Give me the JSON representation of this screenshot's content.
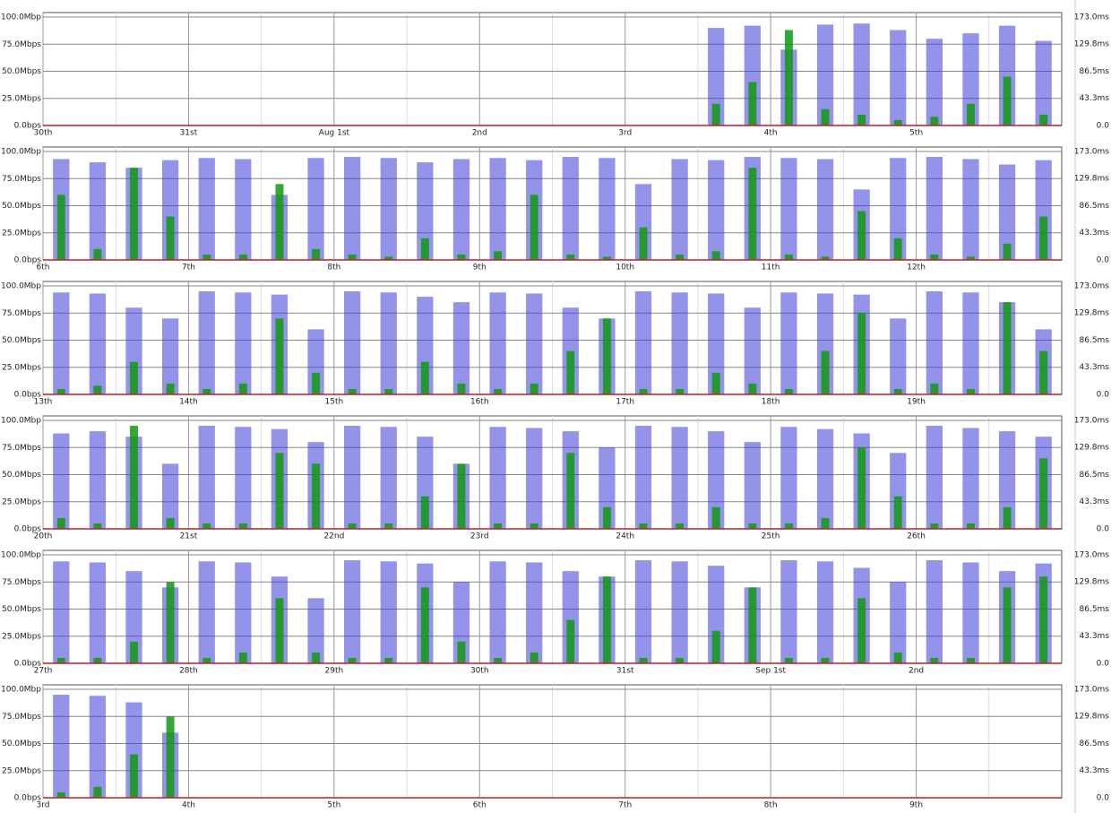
{
  "chart_data": [
    {
      "type": "bar",
      "categories": [
        "30th",
        null,
        null,
        null,
        "31st",
        null,
        null,
        null,
        "Aug 1st",
        null,
        null,
        null,
        "2nd",
        null,
        null,
        null,
        "3rd",
        null,
        null,
        null,
        "4th",
        null,
        null,
        null,
        "5th",
        null,
        null,
        null
      ],
      "series": [
        {
          "color": "#3a3ad8",
          "values": [
            null,
            null,
            null,
            null,
            null,
            null,
            null,
            null,
            null,
            null,
            null,
            null,
            null,
            null,
            null,
            null,
            null,
            null,
            90,
            92,
            70,
            93,
            94,
            88,
            80,
            85,
            92,
            78
          ]
        },
        {
          "color": "#119911",
          "values": [
            null,
            null,
            null,
            null,
            null,
            null,
            null,
            null,
            null,
            null,
            null,
            null,
            null,
            null,
            null,
            null,
            null,
            null,
            20,
            40,
            88,
            15,
            10,
            5,
            8,
            20,
            45,
            10
          ]
        }
      ],
      "ylim": [
        0,
        100
      ],
      "yticks": [
        {
          "value": 0,
          "label": "0.0bps"
        },
        {
          "value": 25,
          "label": "25.0Mbps"
        },
        {
          "value": 50,
          "label": "50.0Mbps"
        },
        {
          "value": 75,
          "label": "75.0Mbps"
        },
        {
          "value": 100,
          "label": "100.0Mbp"
        }
      ],
      "y2lim": [
        0,
        173
      ],
      "y2ticks": [
        {
          "value": 0,
          "label": "0.0"
        },
        {
          "value": 43.3,
          "label": "43.3ms"
        },
        {
          "value": 86.5,
          "label": "86.5ms"
        },
        {
          "value": 129.8,
          "label": "129.8ms"
        },
        {
          "value": 173,
          "label": "173.0ms"
        }
      ],
      "grid": true
    },
    {
      "type": "bar",
      "categories": [
        "6th",
        null,
        null,
        null,
        "7th",
        null,
        null,
        null,
        "8th",
        null,
        null,
        null,
        "9th",
        null,
        null,
        null,
        "10th",
        null,
        null,
        null,
        "11th",
        null,
        null,
        null,
        "12th",
        null,
        null,
        null
      ],
      "series": [
        {
          "color": "#3a3ad8",
          "values": [
            93,
            90,
            85,
            92,
            94,
            93,
            60,
            94,
            95,
            94,
            90,
            93,
            94,
            92,
            95,
            94,
            70,
            93,
            92,
            95,
            94,
            93,
            65,
            94,
            95,
            93,
            88,
            92
          ]
        },
        {
          "color": "#119911",
          "values": [
            60,
            10,
            85,
            40,
            5,
            5,
            70,
            10,
            5,
            3,
            20,
            5,
            8,
            60,
            5,
            3,
            30,
            5,
            8,
            85,
            5,
            3,
            45,
            20,
            5,
            3,
            15,
            40
          ]
        }
      ],
      "ylim": [
        0,
        100
      ],
      "yticks": [
        {
          "value": 0,
          "label": "0.0bps"
        },
        {
          "value": 25,
          "label": "25.0Mbps"
        },
        {
          "value": 50,
          "label": "50.0Mbps"
        },
        {
          "value": 75,
          "label": "75.0Mbps"
        },
        {
          "value": 100,
          "label": "100.0Mbp"
        }
      ],
      "y2lim": [
        0,
        173
      ],
      "y2ticks": [
        {
          "value": 0,
          "label": "0.0"
        },
        {
          "value": 43.3,
          "label": "43.3ms"
        },
        {
          "value": 86.5,
          "label": "86.5ms"
        },
        {
          "value": 129.8,
          "label": "129.8ms"
        },
        {
          "value": 173,
          "label": "173.0ms"
        }
      ],
      "grid": true
    },
    {
      "type": "bar",
      "categories": [
        "13th",
        null,
        null,
        null,
        "14th",
        null,
        null,
        null,
        "15th",
        null,
        null,
        null,
        "16th",
        null,
        null,
        null,
        "17th",
        null,
        null,
        null,
        "18th",
        null,
        null,
        null,
        "19th",
        null,
        null,
        null
      ],
      "series": [
        {
          "color": "#3a3ad8",
          "values": [
            94,
            93,
            80,
            70,
            95,
            94,
            92,
            60,
            95,
            94,
            90,
            85,
            94,
            93,
            80,
            70,
            95,
            94,
            93,
            80,
            94,
            93,
            92,
            70,
            95,
            94,
            85,
            60
          ]
        },
        {
          "color": "#119911",
          "values": [
            5,
            8,
            30,
            10,
            5,
            10,
            70,
            20,
            5,
            5,
            30,
            10,
            5,
            10,
            40,
            70,
            5,
            5,
            20,
            10,
            5,
            40,
            75,
            5,
            10,
            5,
            85,
            40
          ]
        }
      ],
      "ylim": [
        0,
        100
      ],
      "yticks": [
        {
          "value": 0,
          "label": "0.0bps"
        },
        {
          "value": 25,
          "label": "25.0Mbps"
        },
        {
          "value": 50,
          "label": "50.0Mbps"
        },
        {
          "value": 75,
          "label": "75.0Mbps"
        },
        {
          "value": 100,
          "label": "100.0Mbp"
        }
      ],
      "y2lim": [
        0,
        173
      ],
      "y2ticks": [
        {
          "value": 0,
          "label": "0.0"
        },
        {
          "value": 43.3,
          "label": "43.3ms"
        },
        {
          "value": 86.5,
          "label": "86.5ms"
        },
        {
          "value": 129.8,
          "label": "129.8ms"
        },
        {
          "value": 173,
          "label": "173.0ms"
        }
      ],
      "grid": true
    },
    {
      "type": "bar",
      "categories": [
        "20th",
        null,
        null,
        null,
        "21st",
        null,
        null,
        null,
        "22nd",
        null,
        null,
        null,
        "23rd",
        null,
        null,
        null,
        "24th",
        null,
        null,
        null,
        "25th",
        null,
        null,
        null,
        "26th",
        null,
        null,
        null
      ],
      "series": [
        {
          "color": "#3a3ad8",
          "values": [
            88,
            90,
            85,
            60,
            95,
            94,
            92,
            80,
            95,
            94,
            85,
            60,
            94,
            93,
            90,
            75,
            95,
            94,
            90,
            80,
            94,
            92,
            88,
            70,
            95,
            93,
            90,
            85
          ]
        },
        {
          "color": "#119911",
          "values": [
            10,
            5,
            95,
            10,
            5,
            5,
            70,
            60,
            5,
            5,
            30,
            60,
            5,
            5,
            70,
            20,
            5,
            5,
            20,
            5,
            5,
            10,
            75,
            30,
            5,
            5,
            20,
            65
          ]
        }
      ],
      "ylim": [
        0,
        100
      ],
      "yticks": [
        {
          "value": 0,
          "label": "0.0bps"
        },
        {
          "value": 25,
          "label": "25.0Mbps"
        },
        {
          "value": 50,
          "label": "50.0Mbps"
        },
        {
          "value": 75,
          "label": "75.0Mbps"
        },
        {
          "value": 100,
          "label": "100.0Mbp"
        }
      ],
      "y2lim": [
        0,
        173
      ],
      "y2ticks": [
        {
          "value": 0,
          "label": "0.0"
        },
        {
          "value": 43.3,
          "label": "43.3ms"
        },
        {
          "value": 86.5,
          "label": "86.5ms"
        },
        {
          "value": 129.8,
          "label": "129.8ms"
        },
        {
          "value": 173,
          "label": "173.0ms"
        }
      ],
      "grid": true
    },
    {
      "type": "bar",
      "categories": [
        "27th",
        null,
        null,
        null,
        "28th",
        null,
        null,
        null,
        "29th",
        null,
        null,
        null,
        "30th",
        null,
        null,
        null,
        "31st",
        null,
        null,
        null,
        "Sep 1st",
        null,
        null,
        null,
        "2nd",
        null,
        null,
        null
      ],
      "series": [
        {
          "color": "#3a3ad8",
          "values": [
            94,
            93,
            85,
            70,
            94,
            93,
            80,
            60,
            95,
            94,
            92,
            75,
            94,
            93,
            85,
            80,
            95,
            94,
            90,
            70,
            95,
            94,
            88,
            75,
            95,
            93,
            85,
            92
          ]
        },
        {
          "color": "#119911",
          "values": [
            5,
            5,
            20,
            75,
            5,
            10,
            60,
            10,
            5,
            5,
            70,
            20,
            5,
            10,
            40,
            80,
            5,
            5,
            30,
            70,
            5,
            5,
            60,
            10,
            5,
            5,
            70,
            80
          ]
        }
      ],
      "ylim": [
        0,
        100
      ],
      "yticks": [
        {
          "value": 0,
          "label": "0.0bps"
        },
        {
          "value": 25,
          "label": "25.0Mbps"
        },
        {
          "value": 50,
          "label": "50.0Mbps"
        },
        {
          "value": 75,
          "label": "75.0Mbps"
        },
        {
          "value": 100,
          "label": "100.0Mbp"
        }
      ],
      "y2lim": [
        0,
        173
      ],
      "y2ticks": [
        {
          "value": 0,
          "label": "0.0"
        },
        {
          "value": 43.3,
          "label": "43.3ms"
        },
        {
          "value": 86.5,
          "label": "86.5ms"
        },
        {
          "value": 129.8,
          "label": "129.8ms"
        },
        {
          "value": 173,
          "label": "173.0ms"
        }
      ],
      "grid": true
    },
    {
      "type": "bar",
      "categories": [
        "3rd",
        null,
        null,
        null,
        "4th",
        null,
        null,
        null,
        "5th",
        null,
        null,
        null,
        "6th",
        null,
        null,
        null,
        "7th",
        null,
        null,
        null,
        "8th",
        null,
        null,
        null,
        "9th",
        null,
        null,
        null
      ],
      "series": [
        {
          "color": "#3a3ad8",
          "values": [
            95,
            94,
            88,
            60,
            null,
            null,
            null,
            null,
            null,
            null,
            null,
            null,
            null,
            null,
            null,
            null,
            null,
            null,
            null,
            null,
            null,
            null,
            null,
            null,
            null,
            null,
            null,
            null
          ]
        },
        {
          "color": "#119911",
          "values": [
            5,
            10,
            40,
            75,
            null,
            null,
            null,
            null,
            null,
            null,
            null,
            null,
            null,
            null,
            null,
            null,
            null,
            null,
            null,
            null,
            null,
            null,
            null,
            null,
            null,
            null,
            null,
            null
          ]
        }
      ],
      "ylim": [
        0,
        100
      ],
      "yticks": [
        {
          "value": 0,
          "label": "0.0bps"
        },
        {
          "value": 25,
          "label": "25.0Mbps"
        },
        {
          "value": 50,
          "label": "50.0Mbps"
        },
        {
          "value": 75,
          "label": "75.0Mbps"
        },
        {
          "value": 100,
          "label": "100.0Mbp"
        }
      ],
      "y2lim": [
        0,
        173
      ],
      "y2ticks": [
        {
          "value": 0,
          "label": "0.0"
        },
        {
          "value": 43.3,
          "label": "43.3ms"
        },
        {
          "value": 86.5,
          "label": "86.5ms"
        },
        {
          "value": 129.8,
          "label": "129.8ms"
        },
        {
          "value": 173,
          "label": "173.0ms"
        }
      ],
      "grid": true
    }
  ]
}
